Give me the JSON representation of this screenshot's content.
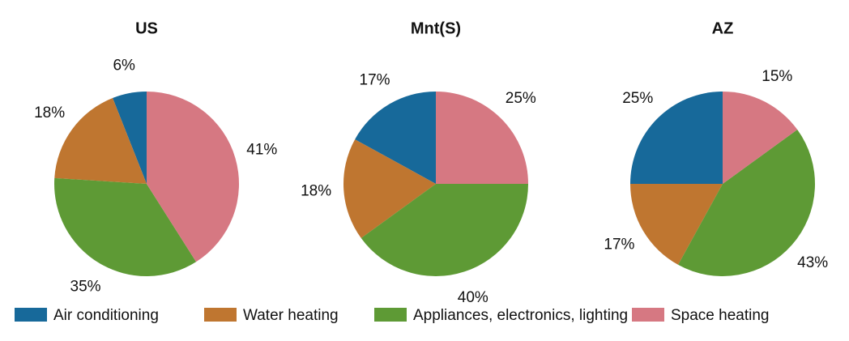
{
  "chart_data": [
    {
      "type": "pie",
      "title": "US",
      "categories": [
        "Air conditioning",
        "Water heating",
        "Appliances, electronics, lighting",
        "Space heating"
      ],
      "values": [
        6,
        18,
        35,
        41
      ],
      "value_labels": [
        "6%",
        "18%",
        "35%",
        "41%"
      ],
      "colors": [
        "#17699a",
        "#bf7630",
        "#5e9a35",
        "#d67882"
      ]
    },
    {
      "type": "pie",
      "title": "Mnt(S)",
      "categories": [
        "Air conditioning",
        "Water heating",
        "Appliances, electronics, lighting",
        "Space heating"
      ],
      "values": [
        17,
        18,
        40,
        25
      ],
      "value_labels": [
        "17%",
        "18%",
        "40%",
        "25%"
      ],
      "colors": [
        "#17699a",
        "#bf7630",
        "#5e9a35",
        "#d67882"
      ]
    },
    {
      "type": "pie",
      "title": "AZ",
      "categories": [
        "Air conditioning",
        "Water heating",
        "Appliances, electronics, lighting",
        "Space heating"
      ],
      "values": [
        25,
        17,
        43,
        15
      ],
      "value_labels": [
        "25%",
        "17%",
        "43%",
        "15%"
      ],
      "colors": [
        "#17699a",
        "#bf7630",
        "#5e9a35",
        "#d67882"
      ]
    }
  ]
}
